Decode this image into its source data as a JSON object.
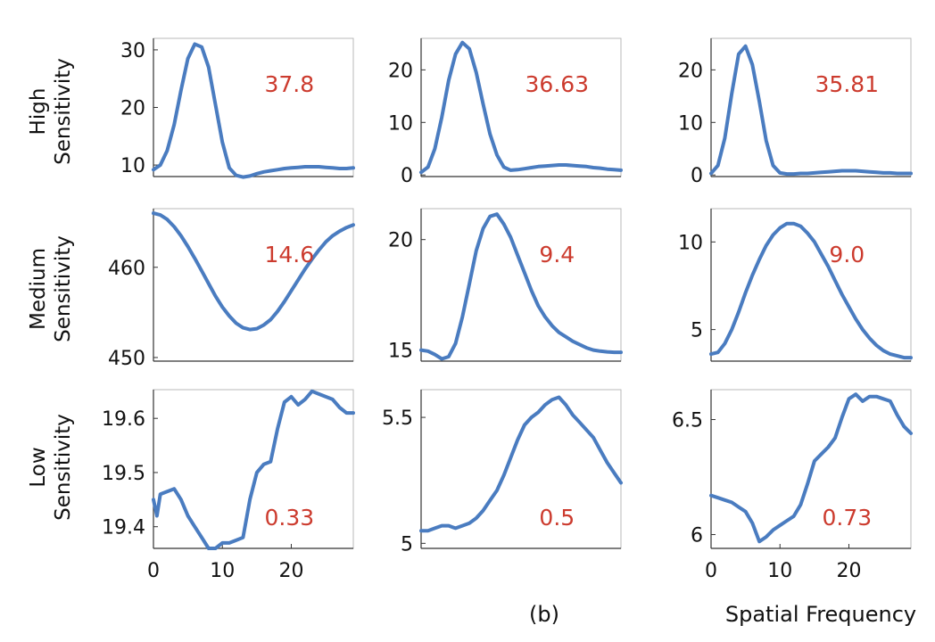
{
  "caption": {
    "panel": "(b)",
    "xaxis": "Spatial Frequency"
  },
  "row_labels": [
    [
      "High",
      "Sensitivity"
    ],
    [
      "Medium",
      "Sensitivity"
    ],
    [
      "Low",
      "Sensitivity"
    ]
  ],
  "colors": {
    "line": "#4a7cc0",
    "value_text": "#cc3b2e"
  },
  "chart_data": [
    {
      "type": "line",
      "row": 0,
      "col": 0,
      "value_label": "37.8",
      "xlim": [
        0,
        29
      ],
      "ylim": [
        8,
        32
      ],
      "yticks": [
        10,
        20,
        30
      ],
      "xticks": [],
      "grid": false,
      "x": [
        0,
        1,
        2,
        3,
        4,
        5,
        6,
        7,
        8,
        9,
        10,
        11,
        12,
        13,
        14,
        15,
        16,
        17,
        18,
        19,
        20,
        21,
        22,
        23,
        24,
        25,
        26,
        27,
        28,
        29
      ],
      "y": [
        9.2,
        10.0,
        12.5,
        17.0,
        23.0,
        28.5,
        31.0,
        30.5,
        27.0,
        20.5,
        14.0,
        9.5,
        8.2,
        7.9,
        8.1,
        8.5,
        8.8,
        9.0,
        9.2,
        9.4,
        9.5,
        9.6,
        9.7,
        9.7,
        9.7,
        9.6,
        9.5,
        9.4,
        9.4,
        9.5
      ]
    },
    {
      "type": "line",
      "row": 0,
      "col": 1,
      "value_label": "36.63",
      "xlim": [
        0,
        29
      ],
      "ylim": [
        -0.3,
        26
      ],
      "yticks": [
        0,
        10,
        20
      ],
      "xticks": [],
      "grid": false,
      "x": [
        0,
        1,
        2,
        3,
        4,
        5,
        6,
        7,
        8,
        9,
        10,
        11,
        12,
        13,
        14,
        15,
        16,
        17,
        18,
        19,
        20,
        21,
        22,
        23,
        24,
        25,
        26,
        27,
        28,
        29
      ],
      "y": [
        0.5,
        1.5,
        5.0,
        11.0,
        18.0,
        23.0,
        25.2,
        24.0,
        19.5,
        13.5,
        7.8,
        3.8,
        1.5,
        0.9,
        1.0,
        1.2,
        1.4,
        1.6,
        1.7,
        1.8,
        1.9,
        1.9,
        1.8,
        1.7,
        1.6,
        1.4,
        1.3,
        1.1,
        1.0,
        0.9
      ]
    },
    {
      "type": "line",
      "row": 0,
      "col": 2,
      "value_label": "35.81",
      "xlim": [
        0,
        29
      ],
      "ylim": [
        -0.3,
        26
      ],
      "yticks": [
        0,
        10,
        20
      ],
      "xticks": [],
      "grid": false,
      "x": [
        0,
        1,
        2,
        3,
        4,
        5,
        6,
        7,
        8,
        9,
        10,
        11,
        12,
        13,
        14,
        15,
        16,
        17,
        18,
        19,
        20,
        21,
        22,
        23,
        24,
        25,
        26,
        27,
        28,
        29
      ],
      "y": [
        0.3,
        1.8,
        7.0,
        15.5,
        23.0,
        24.5,
        21.0,
        14.0,
        6.5,
        1.8,
        0.4,
        0.2,
        0.2,
        0.3,
        0.3,
        0.4,
        0.5,
        0.6,
        0.7,
        0.8,
        0.8,
        0.8,
        0.7,
        0.6,
        0.5,
        0.4,
        0.4,
        0.3,
        0.3,
        0.3
      ]
    },
    {
      "type": "line",
      "row": 1,
      "col": 0,
      "value_label": "14.6",
      "xlim": [
        0,
        29
      ],
      "ylim": [
        449.6,
        466.5
      ],
      "yticks": [
        450,
        460
      ],
      "xticks": [],
      "grid": false,
      "x": [
        0,
        1,
        2,
        3,
        4,
        5,
        6,
        7,
        8,
        9,
        10,
        11,
        12,
        13,
        14,
        15,
        16,
        17,
        18,
        19,
        20,
        21,
        22,
        23,
        24,
        25,
        26,
        27,
        28,
        29
      ],
      "y": [
        466.0,
        465.8,
        465.3,
        464.5,
        463.5,
        462.3,
        461.0,
        459.6,
        458.2,
        456.8,
        455.6,
        454.6,
        453.8,
        453.3,
        453.1,
        453.2,
        453.6,
        454.2,
        455.1,
        456.2,
        457.4,
        458.6,
        459.8,
        460.9,
        461.9,
        462.8,
        463.5,
        464.0,
        464.4,
        464.7
      ]
    },
    {
      "type": "line",
      "row": 1,
      "col": 1,
      "value_label": "9.4",
      "xlim": [
        0,
        29
      ],
      "ylim": [
        14.5,
        21.4
      ],
      "yticks": [
        15,
        20
      ],
      "xticks": [],
      "grid": false,
      "x": [
        0,
        1,
        2,
        3,
        4,
        5,
        6,
        7,
        8,
        9,
        10,
        11,
        12,
        13,
        14,
        15,
        16,
        17,
        18,
        19,
        20,
        21,
        22,
        23,
        24,
        25,
        26,
        27,
        28,
        29
      ],
      "y": [
        15.0,
        14.95,
        14.8,
        14.6,
        14.7,
        15.3,
        16.5,
        18.0,
        19.5,
        20.5,
        21.05,
        21.15,
        20.7,
        20.1,
        19.3,
        18.5,
        17.7,
        17.0,
        16.5,
        16.1,
        15.8,
        15.6,
        15.4,
        15.25,
        15.1,
        15.0,
        14.95,
        14.92,
        14.9,
        14.9
      ]
    },
    {
      "type": "line",
      "row": 1,
      "col": 2,
      "value_label": "9.0",
      "xlim": [
        0,
        29
      ],
      "ylim": [
        3.2,
        11.9
      ],
      "yticks": [
        5,
        10
      ],
      "xticks": [],
      "grid": false,
      "x": [
        0,
        1,
        2,
        3,
        4,
        5,
        6,
        7,
        8,
        9,
        10,
        11,
        12,
        13,
        14,
        15,
        16,
        17,
        18,
        19,
        20,
        21,
        22,
        23,
        24,
        25,
        26,
        27,
        28,
        29
      ],
      "y": [
        3.6,
        3.7,
        4.2,
        5.0,
        6.0,
        7.1,
        8.1,
        9.0,
        9.8,
        10.4,
        10.8,
        11.05,
        11.05,
        10.9,
        10.5,
        10.0,
        9.3,
        8.6,
        7.8,
        7.0,
        6.3,
        5.6,
        5.0,
        4.5,
        4.1,
        3.8,
        3.6,
        3.5,
        3.4,
        3.4
      ]
    },
    {
      "type": "line",
      "row": 2,
      "col": 0,
      "value_label": "0.33",
      "xlim": [
        0,
        29
      ],
      "ylim": [
        19.36,
        19.653
      ],
      "yticks": [
        19.4,
        19.5,
        19.6
      ],
      "xticks": [
        0,
        10,
        20
      ],
      "grid": false,
      "x": [
        0,
        0.5,
        1,
        2,
        3,
        4,
        5,
        6,
        7,
        8,
        9,
        10,
        11,
        12,
        13,
        14,
        15,
        16,
        17,
        18,
        19,
        20,
        21,
        22,
        23,
        24,
        25,
        26,
        27,
        28,
        29
      ],
      "y": [
        19.45,
        19.42,
        19.46,
        19.465,
        19.47,
        19.45,
        19.42,
        19.4,
        19.38,
        19.36,
        19.36,
        19.37,
        19.37,
        19.375,
        19.38,
        19.45,
        19.5,
        19.515,
        19.52,
        19.58,
        19.63,
        19.64,
        19.625,
        19.635,
        19.65,
        19.645,
        19.64,
        19.635,
        19.62,
        19.61,
        19.61
      ]
    },
    {
      "type": "line",
      "row": 2,
      "col": 1,
      "value_label": "0.5",
      "xlim": [
        0,
        29
      ],
      "ylim": [
        4.98,
        5.61
      ],
      "yticks": [
        5,
        5.5
      ],
      "xticks": [],
      "grid": false,
      "x": [
        0,
        1,
        2,
        3,
        4,
        5,
        6,
        7,
        8,
        9,
        10,
        11,
        12,
        13,
        14,
        15,
        16,
        17,
        18,
        19,
        20,
        21,
        22,
        23,
        24,
        25,
        26,
        27,
        28,
        29
      ],
      "y": [
        5.05,
        5.05,
        5.06,
        5.07,
        5.07,
        5.06,
        5.07,
        5.08,
        5.1,
        5.13,
        5.17,
        5.21,
        5.27,
        5.34,
        5.41,
        5.47,
        5.5,
        5.52,
        5.55,
        5.57,
        5.58,
        5.55,
        5.51,
        5.48,
        5.45,
        5.42,
        5.37,
        5.32,
        5.28,
        5.24
      ]
    },
    {
      "type": "line",
      "row": 2,
      "col": 2,
      "value_label": "0.73",
      "xlim": [
        0,
        29
      ],
      "ylim": [
        5.94,
        6.63
      ],
      "yticks": [
        6,
        6.5
      ],
      "xticks": [
        0,
        10,
        20
      ],
      "grid": false,
      "x": [
        0,
        1,
        2,
        3,
        4,
        5,
        6,
        7,
        8,
        9,
        10,
        11,
        12,
        13,
        14,
        15,
        16,
        17,
        18,
        19,
        20,
        21,
        22,
        23,
        24,
        25,
        26,
        27,
        28,
        29
      ],
      "y": [
        6.17,
        6.16,
        6.15,
        6.14,
        6.12,
        6.1,
        6.05,
        5.97,
        5.99,
        6.02,
        6.04,
        6.06,
        6.08,
        6.13,
        6.22,
        6.32,
        6.35,
        6.38,
        6.42,
        6.51,
        6.59,
        6.61,
        6.58,
        6.6,
        6.6,
        6.59,
        6.58,
        6.52,
        6.47,
        6.44
      ]
    }
  ]
}
